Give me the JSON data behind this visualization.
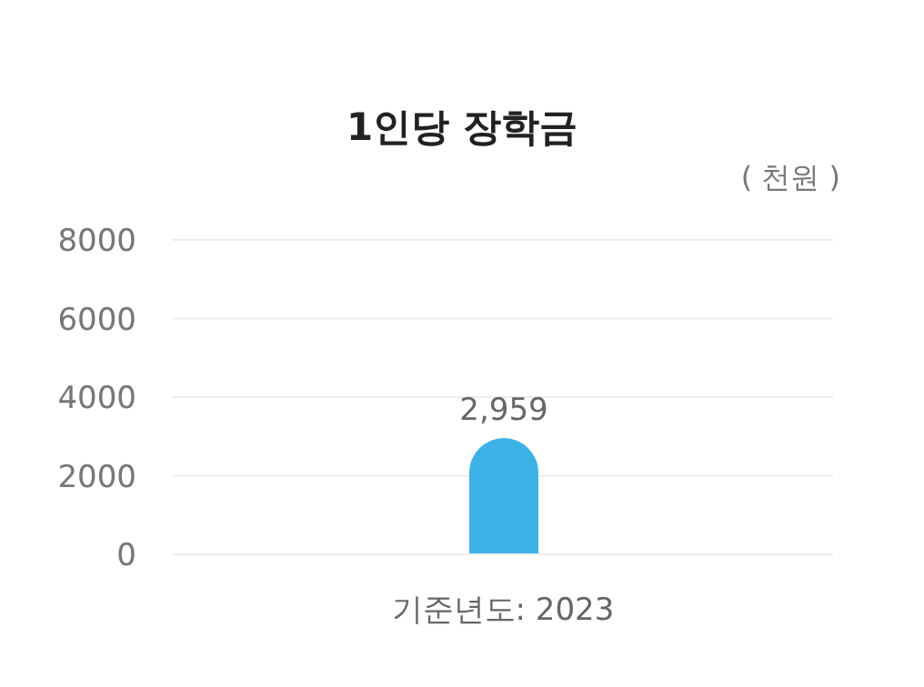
{
  "chart_data": {
    "type": "bar",
    "title": "1인당 장학금",
    "ylabel": "( 천원 )",
    "categories": [
      "기준년도: 2023"
    ],
    "values": [
      2959
    ],
    "value_labels": [
      "2,959"
    ],
    "color": "#3db2e6",
    "ylim": [
      0,
      8000
    ],
    "yticks": [
      0,
      2000,
      4000,
      6000,
      8000
    ],
    "grid": "y",
    "legend": false
  }
}
